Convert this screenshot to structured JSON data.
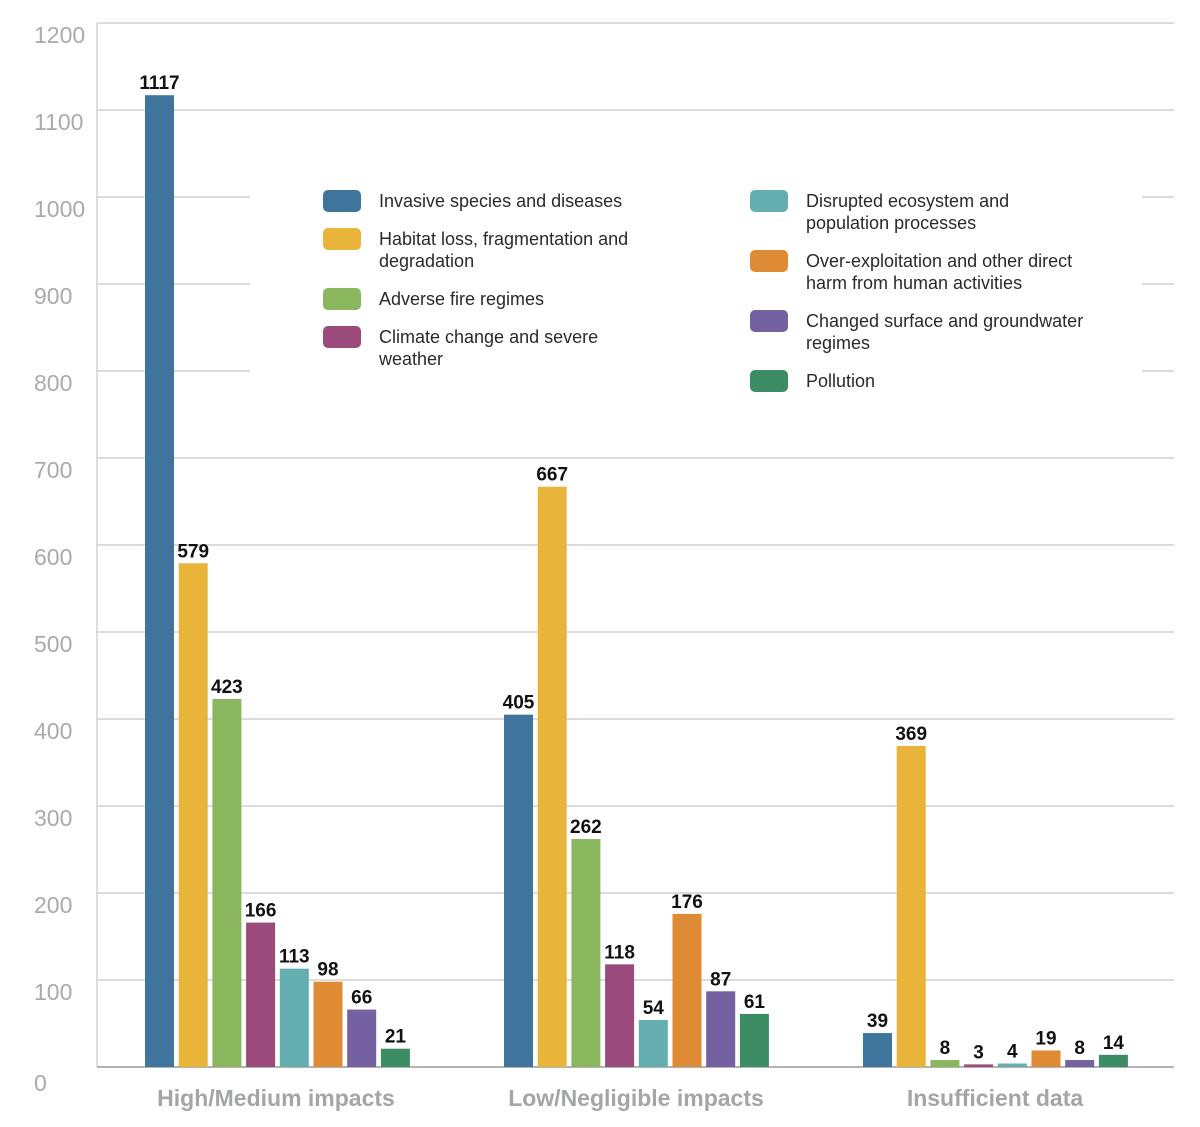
{
  "chart_data": {
    "type": "bar",
    "categories": [
      "High/Medium impacts",
      "Low/Negligible impacts",
      "Insufficient data"
    ],
    "ylim": [
      0,
      1200
    ],
    "yticks": [
      0,
      100,
      200,
      300,
      400,
      500,
      600,
      700,
      800,
      900,
      1000,
      1100,
      1200
    ],
    "grid": true,
    "legend_position": "top-center, two columns",
    "series": [
      {
        "name": "Invasive species and diseases",
        "color": "#3f759c",
        "values": [
          1117,
          405,
          39
        ]
      },
      {
        "name": "Habitat loss, fragmentation and degradation",
        "color": "#e8b43a",
        "values": [
          579,
          667,
          369
        ]
      },
      {
        "name": "Adverse fire regimes",
        "color": "#8ab75d",
        "values": [
          423,
          262,
          8
        ]
      },
      {
        "name": "Climate change and severe weather",
        "color": "#9a4a7b",
        "values": [
          166,
          118,
          3
        ]
      },
      {
        "name": "Disrupted ecosystem and population processes",
        "color": "#64aeb0",
        "values": [
          113,
          54,
          4
        ]
      },
      {
        "name": "Over-exploitation and other direct harm from human activities",
        "color": "#df8b35",
        "values": [
          98,
          176,
          19
        ]
      },
      {
        "name": "Changed surface and groundwater regimes",
        "color": "#7461a1",
        "values": [
          66,
          87,
          8
        ]
      },
      {
        "name": "Pollution",
        "color": "#3c8c64",
        "values": [
          21,
          61,
          14
        ]
      }
    ],
    "legend_lines": [
      [
        "Invasive species and diseases"
      ],
      [
        "Habitat loss, fragmentation and",
        "degradation"
      ],
      [
        "Adverse fire regimes"
      ],
      [
        "Climate change and severe",
        "weather"
      ],
      [
        "Disrupted ecosystem and",
        "population processes"
      ],
      [
        "Over-exploitation and other direct",
        "harm from human activities"
      ],
      [
        "Changed surface and groundwater",
        "regimes"
      ],
      [
        "Pollution"
      ]
    ]
  }
}
